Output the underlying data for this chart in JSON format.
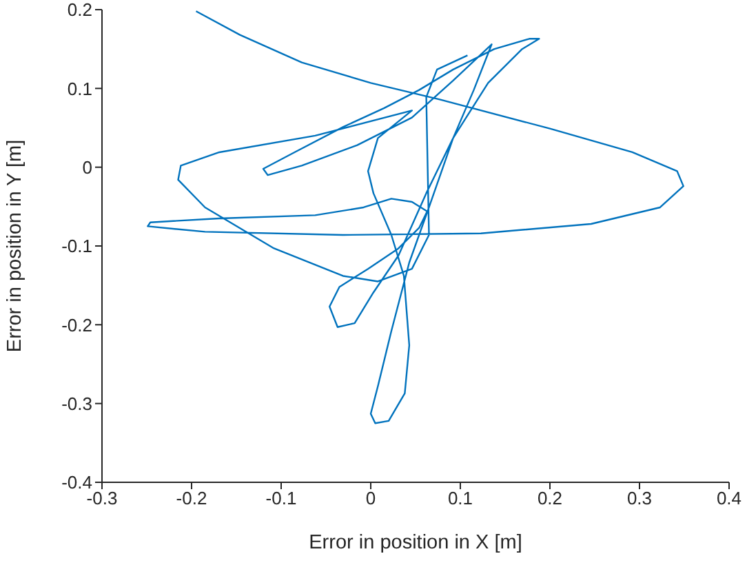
{
  "chart_data": {
    "type": "line",
    "xlabel": "Error in position in X [m]",
    "ylabel": "Error in position in Y [m]",
    "xlim": [
      -0.3,
      0.4
    ],
    "ylim": [
      -0.4,
      0.2
    ],
    "xticks": [
      -0.3,
      -0.2,
      -0.1,
      0,
      0.1,
      0.2,
      0.3,
      0.4
    ],
    "yticks": [
      -0.4,
      -0.3,
      -0.2,
      -0.1,
      0,
      0.1,
      0.2
    ],
    "grid": false,
    "legend": false,
    "marker": "none",
    "line_style": "solid",
    "series": [
      {
        "color": "#0072bd",
        "x": [
          -0.195,
          -0.146,
          -0.077,
          0,
          0.077,
          0.2,
          0.292,
          0.342,
          0.349,
          0.323,
          0.246,
          0.123,
          -0.031,
          -0.185,
          -0.249,
          -0.246,
          -0.169,
          -0.062,
          -0.008,
          0.023,
          0.046,
          0.063,
          0.054,
          0.031,
          -0.003,
          -0.035,
          -0.046,
          -0.037,
          -0.018,
          0.003,
          0.031,
          0.062,
          0.092,
          0.131,
          0.169,
          0.188,
          0.177,
          0.138,
          0.092,
          0.054,
          0.015,
          -0.031,
          -0.085,
          -0.12,
          -0.115,
          -0.077,
          -0.015,
          0.046,
          0.092,
          0.135,
          0.115,
          0.092,
          0.065,
          0.043,
          0.023,
          0.008,
          0,
          0.005,
          0.02,
          0.038,
          0.043,
          0.037,
          0.023,
          0.003,
          -0.003,
          0.008,
          0.046,
          -0.062,
          -0.169,
          -0.212,
          -0.215,
          -0.185,
          -0.108,
          -0.031,
          0.008,
          0.046,
          0.065,
          0.062,
          0.074,
          0.108
        ],
        "values": [
          0.198,
          0.168,
          0.133,
          0.107,
          0.086,
          0.049,
          0.019,
          -0.005,
          -0.024,
          -0.051,
          -0.072,
          -0.084,
          -0.086,
          -0.082,
          -0.075,
          -0.07,
          -0.065,
          -0.061,
          -0.051,
          -0.04,
          -0.044,
          -0.056,
          -0.077,
          -0.103,
          -0.129,
          -0.152,
          -0.177,
          -0.203,
          -0.198,
          -0.159,
          -0.112,
          -0.033,
          0.037,
          0.107,
          0.15,
          0.163,
          0.163,
          0.15,
          0.124,
          0.098,
          0.075,
          0.051,
          0.019,
          -0.002,
          -0.01,
          0.002,
          0.028,
          0.063,
          0.11,
          0.156,
          0.098,
          0.037,
          -0.051,
          -0.121,
          -0.208,
          -0.278,
          -0.313,
          -0.325,
          -0.322,
          -0.287,
          -0.226,
          -0.138,
          -0.086,
          -0.033,
          -0.005,
          0.037,
          0.072,
          0.04,
          0.019,
          0.002,
          -0.016,
          -0.051,
          -0.103,
          -0.138,
          -0.145,
          -0.129,
          -0.086,
          0.089,
          0.124,
          0.142
        ]
      }
    ]
  }
}
